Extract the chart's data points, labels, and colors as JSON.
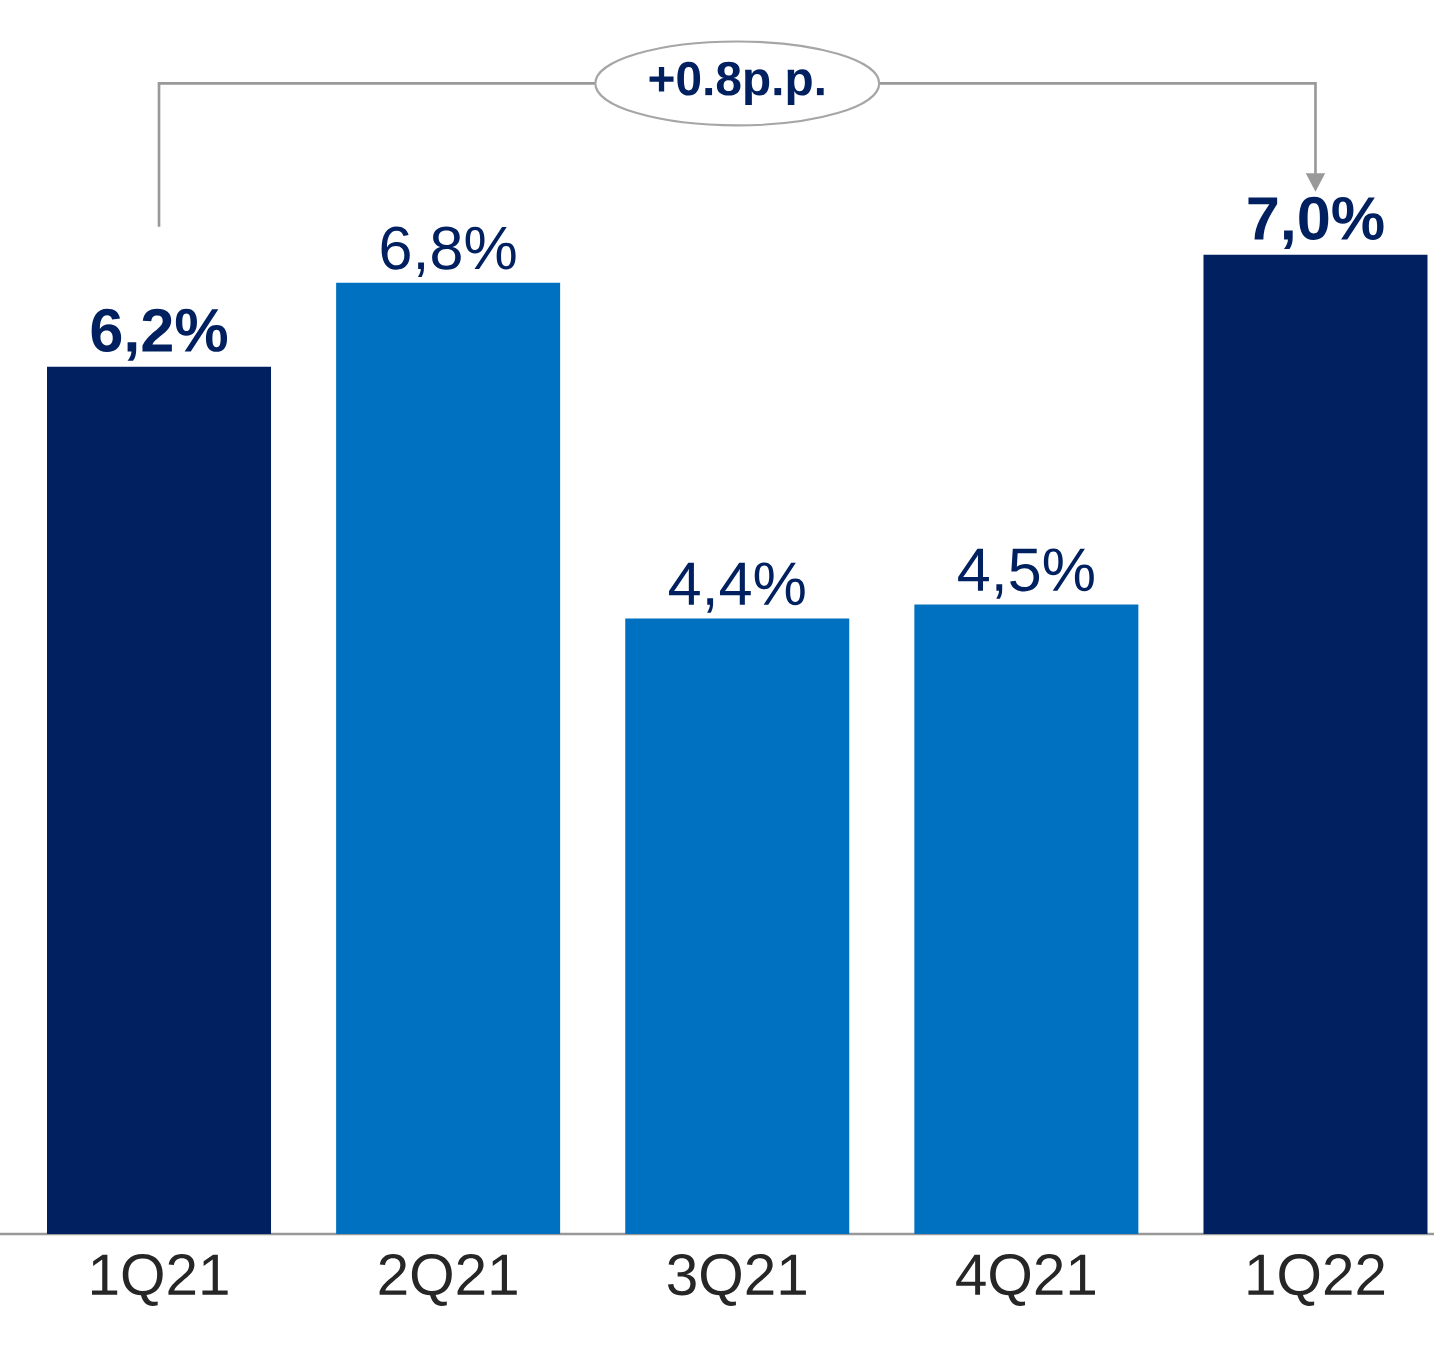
{
  "chart_data": {
    "type": "bar",
    "categories": [
      "1Q21",
      "2Q21",
      "3Q21",
      "4Q21",
      "1Q22"
    ],
    "values": [
      6.2,
      6.8,
      4.4,
      4.5,
      7.0
    ],
    "colors": [
      "#002060",
      "#0070c0",
      "#0070c0",
      "#0070c0",
      "#002060"
    ],
    "value_labels": [
      "6,2%",
      "6,8%",
      "4,4%",
      "4,5%",
      "7,0%"
    ],
    "annotations": [
      "+0.8p.p."
    ],
    "grid": false,
    "legend": false
  }
}
